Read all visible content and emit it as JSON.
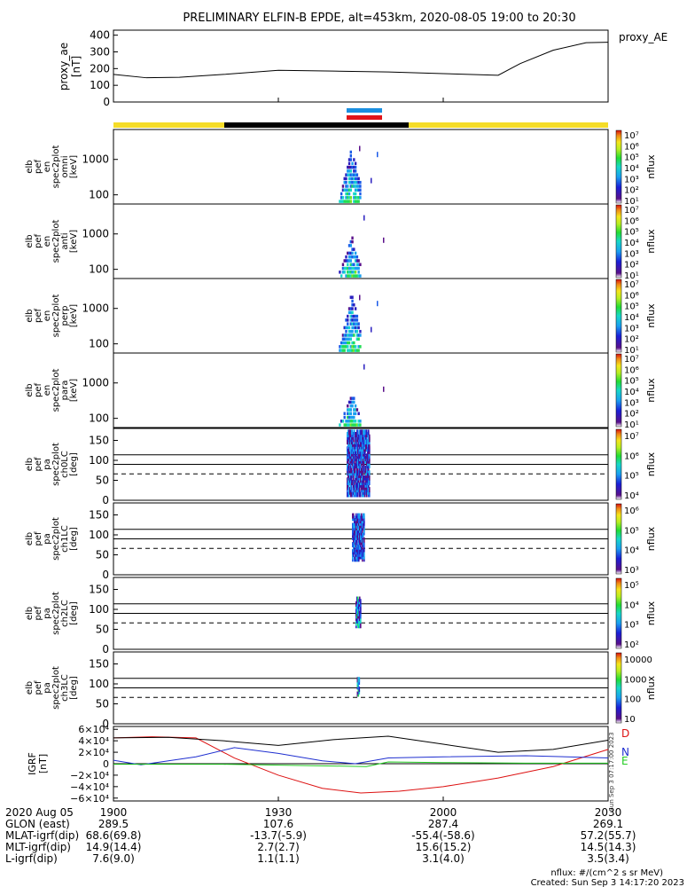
{
  "title": "PRELIMINARY ELFIN-B EPDE, alt=453km, 2020-08-05 19:00 to 20:30",
  "colors": {
    "ae": "#000000",
    "bar_blue": "#1a8fe0",
    "bar_red": "#e0141a",
    "sunlight_yellow": "#f5dc28",
    "shadow_black": "#000000",
    "igrf_D": "#dd1111",
    "igrf_N": "#1f2fd0",
    "igrf_E": "#22cc22",
    "igrf_mag": "#000000"
  },
  "ae_panel": {
    "ylabel_lines": [
      "proxy_ae",
      "[nT]"
    ],
    "right_label": "proxy_AE",
    "yticks": [
      "0",
      "100",
      "200",
      "300",
      "400"
    ]
  },
  "spec_panels": [
    {
      "ylabel_lines": [
        "elb",
        "pef",
        "en",
        "spec2plot",
        "omni",
        "[keV]"
      ],
      "yticks": [
        "100",
        "1000"
      ],
      "cbar_ticks": [
        "10⁷",
        "10⁶",
        "10⁵",
        "10⁴",
        "10³",
        "10²",
        "10¹"
      ],
      "cbar_label": "nflux"
    },
    {
      "ylabel_lines": [
        "elb",
        "pef",
        "en",
        "spec2plot",
        "anti",
        "[keV]"
      ],
      "yticks": [
        "100",
        "1000"
      ],
      "cbar_ticks": [
        "10⁷",
        "10⁶",
        "10⁵",
        "10⁴",
        "10³",
        "10²",
        "10¹"
      ],
      "cbar_label": "nflux"
    },
    {
      "ylabel_lines": [
        "elb",
        "pef",
        "en",
        "spec2plot",
        "perp",
        "[keV]"
      ],
      "yticks": [
        "100",
        "1000"
      ],
      "cbar_ticks": [
        "10⁷",
        "10⁶",
        "10⁵",
        "10⁴",
        "10³",
        "10²",
        "10¹"
      ],
      "cbar_label": "nflux"
    },
    {
      "ylabel_lines": [
        "elb",
        "pef",
        "en",
        "spec2plot",
        "para",
        "[keV]"
      ],
      "yticks": [
        "100",
        "1000"
      ],
      "cbar_ticks": [
        "10⁷",
        "10⁶",
        "10⁵",
        "10⁴",
        "10³",
        "10²",
        "10¹"
      ],
      "cbar_label": "nflux"
    }
  ],
  "pa_panels": [
    {
      "ylabel_lines": [
        "elb",
        "pef",
        "pa",
        "spec2plot",
        "ch0LC",
        "[deg]"
      ],
      "yticks": [
        "0",
        "50",
        "100",
        "150"
      ],
      "cbar_ticks": [
        "10⁷",
        "10⁶",
        "10⁵",
        "10⁴"
      ],
      "cbar_label": "nflux"
    },
    {
      "ylabel_lines": [
        "elb",
        "pef",
        "pa",
        "spec2plot",
        "ch1LC",
        "[deg]"
      ],
      "yticks": [
        "0",
        "50",
        "100",
        "150"
      ],
      "cbar_ticks": [
        "10⁶",
        "10⁵",
        "10⁴",
        "10³"
      ],
      "cbar_label": "nflux"
    },
    {
      "ylabel_lines": [
        "elb",
        "pef",
        "pa",
        "spec2plot",
        "ch2LC",
        "[deg]"
      ],
      "yticks": [
        "0",
        "50",
        "100",
        "150"
      ],
      "cbar_ticks": [
        "10⁵",
        "10⁴",
        "10³",
        "10²"
      ],
      "cbar_label": "nflux"
    },
    {
      "ylabel_lines": [
        "elb",
        "pef",
        "pa",
        "spec2plot",
        "ch3LC",
        "[deg]"
      ],
      "yticks": [
        "0",
        "50",
        "100",
        "150"
      ],
      "cbar_ticks": [
        "10000",
        "1000",
        "100",
        "10"
      ],
      "cbar_label": "nflux"
    }
  ],
  "igrf_panel": {
    "ylabel_lines": [
      "IGRF",
      "[nT]"
    ],
    "yticks": [
      "−6×10⁴",
      "−4×10⁴",
      "−2×10⁴",
      "0",
      "2×10⁴",
      "4×10⁴",
      "6×10⁴"
    ],
    "legend": [
      "D",
      "N",
      "E"
    ],
    "side_text": "Sun Sep  3 07:17:00 2023"
  },
  "footer": {
    "rows": [
      {
        "label": "2020 Aug 05",
        "values": [
          "1900",
          "1930",
          "2000",
          "2030"
        ]
      },
      {
        "label": "GLON (east)",
        "values": [
          "289.5",
          "107.6",
          "287.4",
          "269.1"
        ]
      },
      {
        "label": "MLAT-igrf(dip)",
        "values": [
          "68.6(69.8)",
          "-13.7(-5.9)",
          "-55.4(-58.6)",
          "57.2(55.7)"
        ]
      },
      {
        "label": "MLT-igrf(dip)",
        "values": [
          "14.9(14.4)",
          "2.7(2.7)",
          "15.6(15.2)",
          "14.5(14.3)"
        ]
      },
      {
        "label": "L-igrf(dip)",
        "values": [
          "7.6(9.0)",
          "1.1(1.1)",
          "3.1(4.0)",
          "3.5(3.4)"
        ]
      }
    ],
    "units_note": "nflux: #/(cm^2 s sr MeV)",
    "created": "Created: Sun Sep  3 14:17:20 2023"
  },
  "chart_data": [
    {
      "type": "line",
      "title": "PRELIMINARY ELFIN-B EPDE, alt=453km, 2020-08-05 19:00 to 20:30",
      "ylabel": "proxy_ae [nT]",
      "series": [
        {
          "name": "proxy_AE",
          "x": [
            "19:00",
            "19:06",
            "19:12",
            "19:20",
            "19:30",
            "19:40",
            "19:50",
            "20:00",
            "20:10",
            "20:14",
            "20:20",
            "20:26",
            "20:30"
          ],
          "values": [
            165,
            145,
            148,
            165,
            190,
            185,
            180,
            170,
            160,
            230,
            310,
            355,
            358
          ]
        }
      ],
      "xlim": [
        "19:00",
        "20:30"
      ],
      "ylim": [
        0,
        430
      ]
    },
    {
      "type": "heatmap",
      "panels": [
        "omni",
        "anti",
        "perp",
        "para"
      ],
      "ylabel": "[keV]",
      "yscale": "log",
      "ylim": [
        55,
        7000
      ],
      "active_interval": [
        "19:41",
        "19:45"
      ],
      "color_scale": "nflux"
    },
    {
      "type": "heatmap",
      "panels": [
        "ch0LC",
        "ch1LC",
        "ch2LC",
        "ch3LC"
      ],
      "ylabel": "[deg]",
      "ylim": [
        0,
        180
      ],
      "reference_lines_deg": [
        114,
        90,
        66
      ],
      "color_scale": "nflux"
    },
    {
      "type": "line",
      "ylabel": "IGRF [nT]",
      "ylim": [
        -65000,
        65000
      ],
      "series": [
        {
          "name": "D",
          "x": [
            "19:00",
            "19:07",
            "19:15",
            "19:22",
            "19:30",
            "19:38",
            "19:45",
            "19:52",
            "20:00",
            "20:10",
            "20:20",
            "20:30"
          ],
          "values": [
            45000,
            47000,
            45000,
            10000,
            -20000,
            -43000,
            -51000,
            -48000,
            -40000,
            -25000,
            -5000,
            25000
          ]
        },
        {
          "name": "N",
          "x": [
            "19:00",
            "19:05",
            "19:15",
            "19:22",
            "19:30",
            "19:38",
            "19:44",
            "19:47",
            "19:50",
            "20:00",
            "20:15",
            "20:30"
          ],
          "values": [
            6000,
            -2000,
            12000,
            28000,
            18000,
            5000,
            0,
            5000,
            10000,
            12000,
            14000,
            10000
          ]
        },
        {
          "name": "E",
          "x": [
            "19:00",
            "19:20",
            "19:40",
            "19:46",
            "19:50",
            "20:00",
            "20:15",
            "20:30"
          ],
          "values": [
            -1000,
            -1000,
            -4000,
            -5000,
            3000,
            2000,
            1000,
            1000
          ]
        },
        {
          "name": "",
          "x": [
            "19:00",
            "19:10",
            "19:20",
            "19:30",
            "19:40",
            "19:50",
            "20:00",
            "20:10",
            "20:20",
            "20:30"
          ],
          "values": [
            45000,
            46000,
            40000,
            32000,
            42000,
            48000,
            34000,
            20000,
            25000,
            41000
          ]
        }
      ]
    }
  ]
}
